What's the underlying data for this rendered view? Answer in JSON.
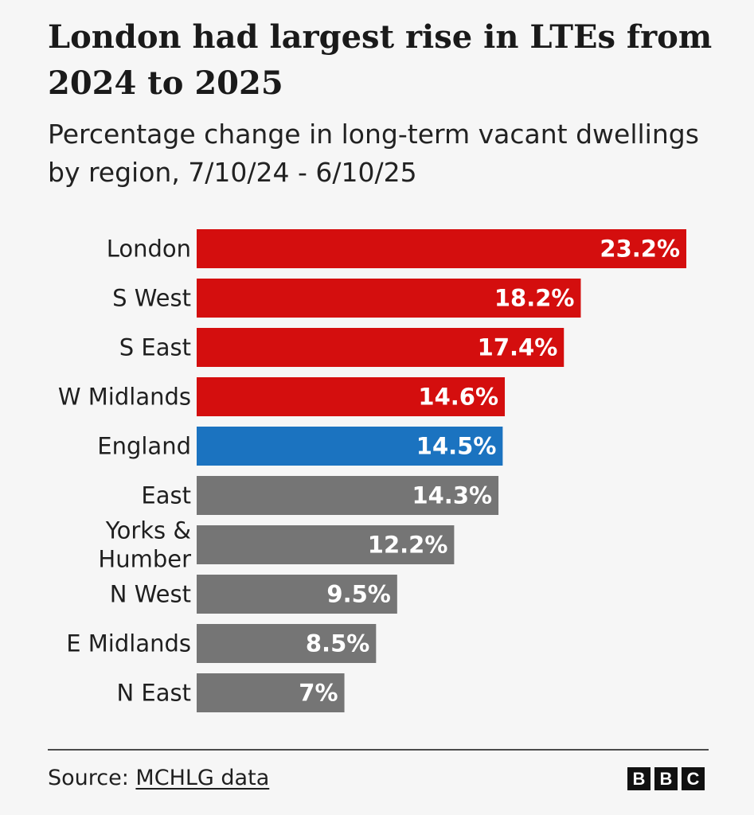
{
  "title": "London had largest rise in LTEs from 2024 to 2025",
  "subtitle": "Percentage change in long-term vacant dwellings by region, 7/10/24 - 6/10/25",
  "colors": {
    "highlight_red": "#d40e0e",
    "england_blue": "#1b73c0",
    "other_grey": "#757575"
  },
  "chart_data": {
    "type": "bar",
    "orientation": "horizontal",
    "title": "London had largest rise in LTEs from 2024 to 2025",
    "subtitle": "Percentage change in long-term vacant dwellings by region, 7/10/24 - 6/10/25",
    "xlabel": "",
    "ylabel": "",
    "xlim": [
      0,
      23.2
    ],
    "grid": false,
    "categories": [
      [
        "London"
      ],
      [
        "S West"
      ],
      [
        "S East"
      ],
      [
        "W Midlands"
      ],
      [
        "England"
      ],
      [
        "East"
      ],
      [
        "Yorks &",
        "Humber"
      ],
      [
        "N West"
      ],
      [
        "E Midlands"
      ],
      [
        "N East"
      ]
    ],
    "values": [
      23.2,
      18.2,
      17.4,
      14.6,
      14.5,
      14.3,
      12.2,
      9.5,
      8.5,
      7
    ],
    "value_labels": [
      "23.2%",
      "18.2%",
      "17.4%",
      "14.6%",
      "14.5%",
      "14.3%",
      "12.2%",
      "9.5%",
      "8.5%",
      "7%"
    ],
    "bar_colors": [
      "red",
      "red",
      "red",
      "red",
      "blue",
      "grey",
      "grey",
      "grey",
      "grey",
      "grey"
    ]
  },
  "footer": {
    "source_prefix": "Source: ",
    "source_link": "MCHLG data",
    "logo_letters": [
      "B",
      "B",
      "C"
    ]
  }
}
